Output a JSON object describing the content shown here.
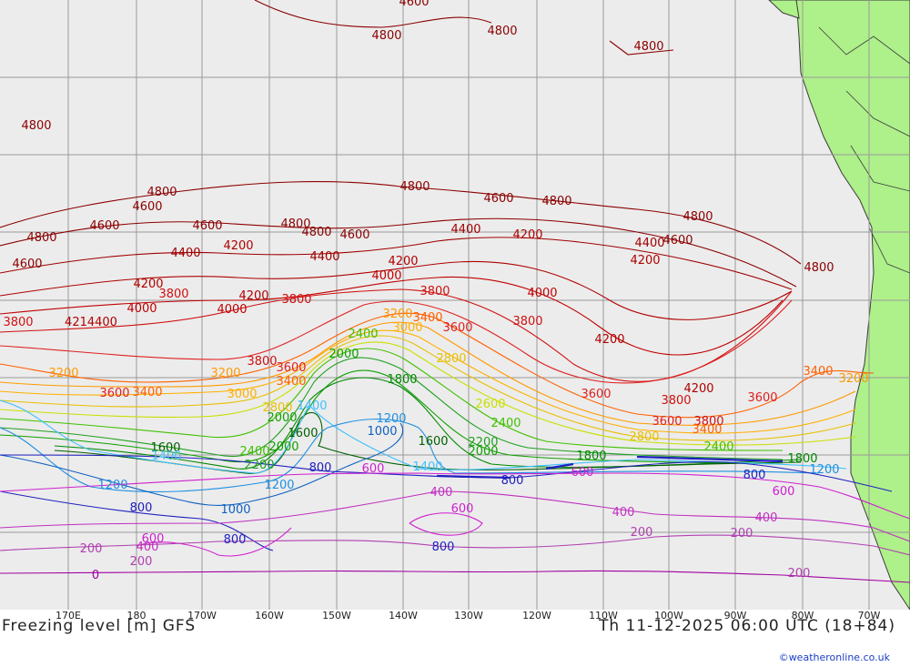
{
  "map": {
    "colors": {
      "ocean": "#ececec",
      "land": "#aef08a",
      "coast": "#3c3c3c",
      "grid": "#9a9a9a"
    },
    "lon_labels": [
      "170E",
      "180",
      "170W",
      "160W",
      "150W",
      "140W",
      "130W",
      "120W",
      "110W",
      "100W",
      "90W",
      "80W",
      "70W"
    ],
    "contour_colors": {
      "4800": "#8b0000",
      "4600": "#8b0000",
      "4400": "#a00000",
      "4200": "#b00000",
      "4000": "#c00000",
      "3800": "#d01010",
      "3600": "#e02020",
      "3400": "#ff6000",
      "3200": "#ff9a00",
      "3000": "#ffb000",
      "2800": "#e8c000",
      "2600": "#c8e000",
      "2400": "#40c000",
      "2200": "#20a020",
      "2000": "#10a000",
      "1800": "#008800",
      "1600": "#006000",
      "1400": "#40c0ff",
      "1200": "#2090e0",
      "1000": "#1060c0",
      "800": "#2020c0",
      "600": "#d020d0",
      "400": "#c030c0",
      "200": "#b040b0",
      "0": "#a000a0"
    }
  },
  "footer": {
    "left": "Freezing level [m] GFS",
    "right": "Th 11-12-2025 06:00 UTC (18+84)",
    "credit": "©weatheronline.co.uk"
  }
}
